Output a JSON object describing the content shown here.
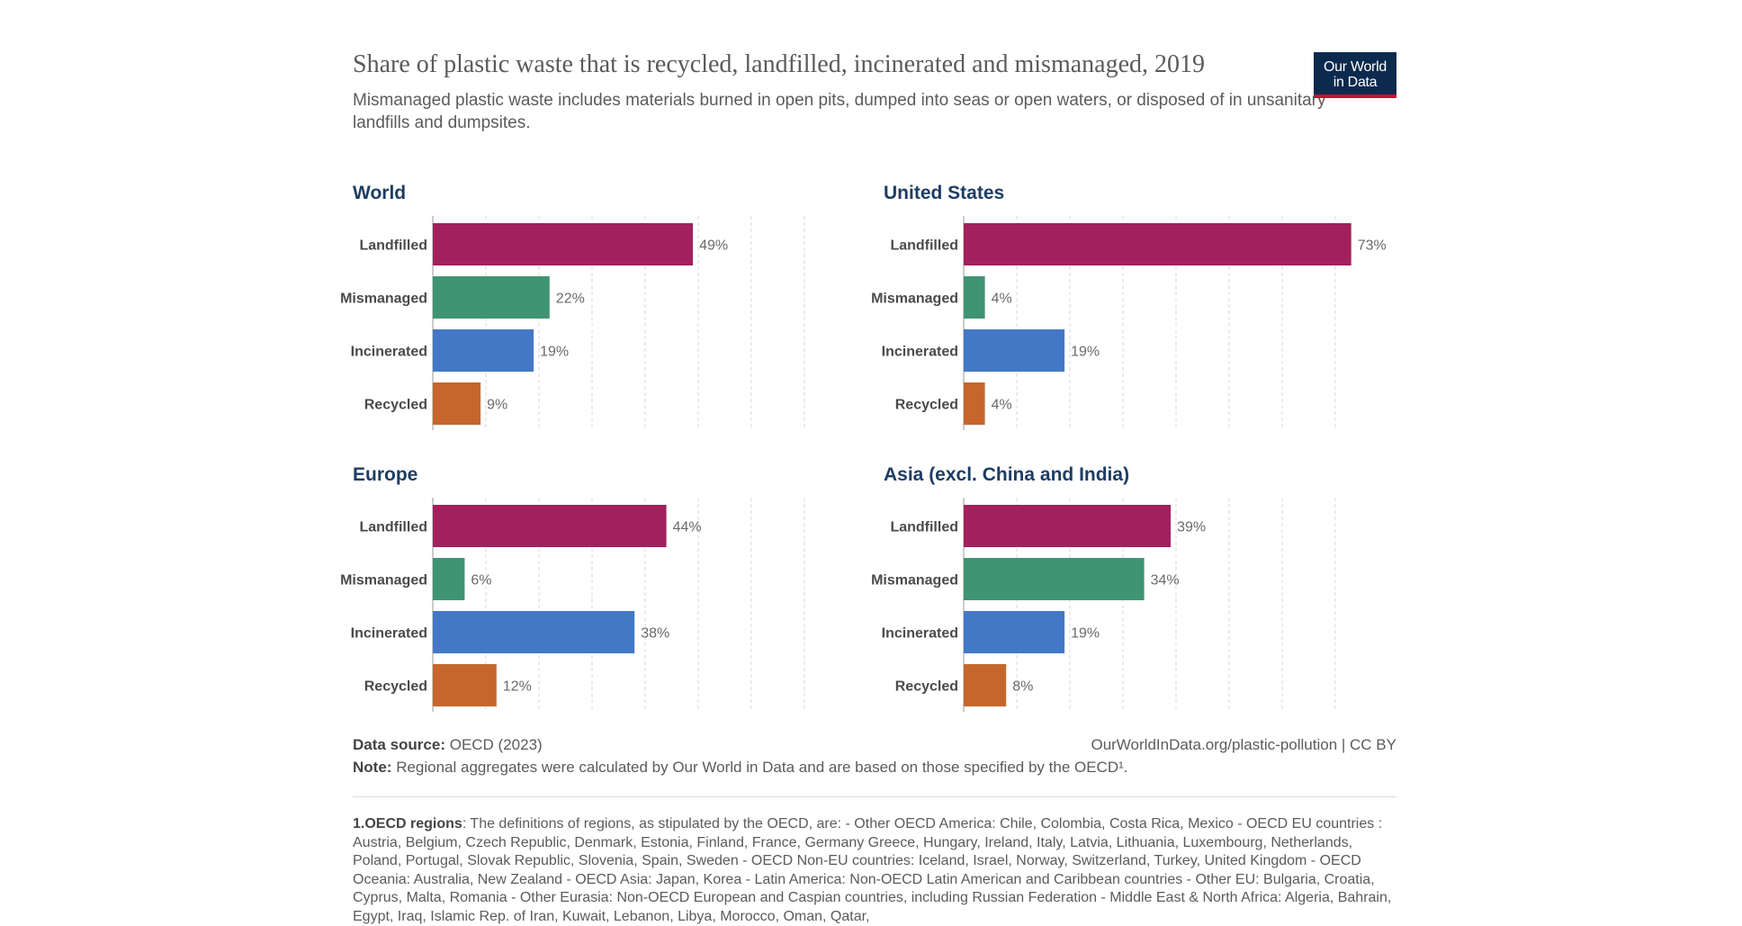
{
  "header": {
    "title": "Share of plastic waste that is recycled, landfilled, incinerated and mismanaged, 2019",
    "subtitle": "Mismanaged plastic waste includes materials burned in open pits, dumped into seas or open waters, or disposed of in unsanitary landfills and dumpsites.",
    "logo_line1": "Our World",
    "logo_line2": "in Data"
  },
  "colors": {
    "Landfilled": "#a2215c",
    "Mismanaged": "#3f9474",
    "Incinerated": "#4378c6",
    "Recycled": "#c5672c"
  },
  "chart_data": [
    {
      "type": "bar",
      "orientation": "horizontal",
      "title": "World",
      "categories": [
        "Landfilled",
        "Mismanaged",
        "Incinerated",
        "Recycled"
      ],
      "values": [
        49,
        22,
        19,
        9
      ],
      "value_labels": [
        "49%",
        "22%",
        "19%",
        "9%"
      ],
      "xlim": [
        0,
        70
      ],
      "grid": true
    },
    {
      "type": "bar",
      "orientation": "horizontal",
      "title": "United States",
      "categories": [
        "Landfilled",
        "Mismanaged",
        "Incinerated",
        "Recycled"
      ],
      "values": [
        73,
        4,
        19,
        4
      ],
      "value_labels": [
        "73%",
        "4%",
        "19%",
        "4%"
      ],
      "xlim": [
        0,
        70
      ],
      "grid": true
    },
    {
      "type": "bar",
      "orientation": "horizontal",
      "title": "Europe",
      "categories": [
        "Landfilled",
        "Mismanaged",
        "Incinerated",
        "Recycled"
      ],
      "values": [
        44,
        6,
        38,
        12
      ],
      "value_labels": [
        "44%",
        "6%",
        "38%",
        "12%"
      ],
      "xlim": [
        0,
        70
      ],
      "grid": true
    },
    {
      "type": "bar",
      "orientation": "horizontal",
      "title": "Asia (excl. China and India)",
      "categories": [
        "Landfilled",
        "Mismanaged",
        "Incinerated",
        "Recycled"
      ],
      "values": [
        39,
        34,
        19,
        8
      ],
      "value_labels": [
        "39%",
        "34%",
        "19%",
        "8%"
      ],
      "xlim": [
        0,
        70
      ],
      "grid": true
    }
  ],
  "footer": {
    "source_label": "Data source:",
    "source_value": "OECD (2023)",
    "url": "OurWorldInData.org/plastic-pollution | CC BY",
    "note_label": "Note:",
    "note_value": "Regional aggregates were calculated by Our World in Data and are based on those specified by the OECD¹."
  },
  "footnote": {
    "label": "1.OECD regions",
    "text": ": The definitions of regions, as stipulated by the OECD, are: - Other OECD America: Chile, Colombia, Costa Rica, Mexico - OECD EU countries : Austria, Belgium, Czech Republic, Denmark, Estonia, Finland, France, Germany Greece, Hungary, Ireland, Italy, Latvia, Lithuania, Luxembourg, Netherlands, Poland, Portugal, Slovak Republic, Slovenia, Spain, Sweden - OECD Non-EU countries: Iceland, Israel, Norway, Switzerland, Turkey, United Kingdom - OECD Oceania: Australia, New Zealand - OECD Asia: Japan, Korea - Latin America: Non-OECD Latin American and Caribbean countries - Other EU: Bulgaria, Croatia, Cyprus, Malta, Romania - Other Eurasia: Non-OECD European and Caspian countries, including Russian Federation - Middle East & North Africa: Algeria, Bahrain, Egypt, Iraq, Islamic Rep. of Iran, Kuwait, Lebanon, Libya, Morocco, Oman, Qatar,"
  }
}
